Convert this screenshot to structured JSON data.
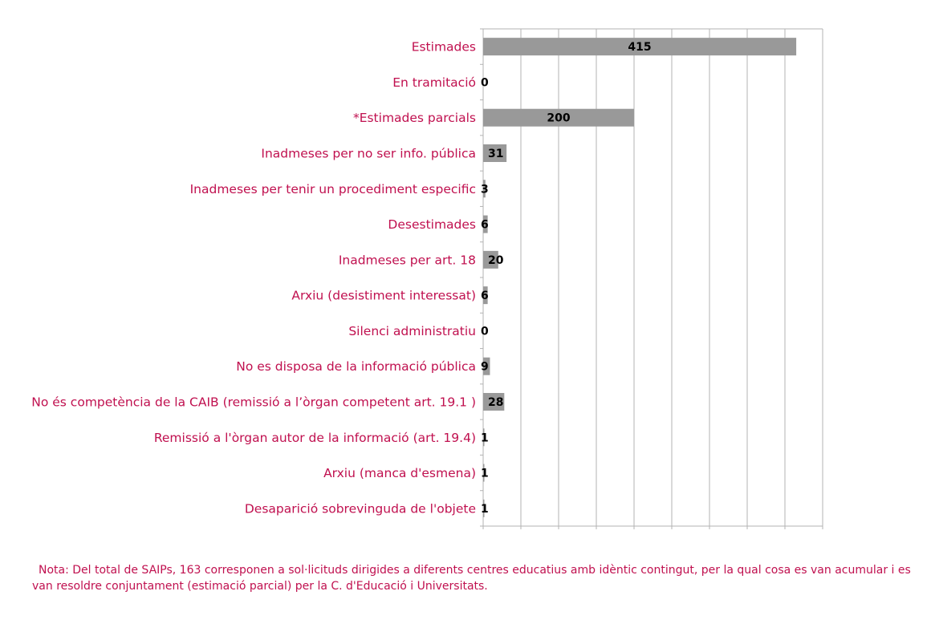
{
  "chart_data": {
    "type": "bar",
    "orientation": "horizontal",
    "categories": [
      "Estimades",
      "En tramitació",
      "*Estimades parcials",
      "Inadmeses per no ser info. pública",
      "Inadmeses per tenir un procediment especific",
      "Desestimades",
      "Inadmeses per art. 18",
      "Arxiu (desistiment interessat)",
      "Silenci administratiu",
      "No es disposa de la informació pública",
      "No és competència de la CAIB (remissió a l’òrgan competent art. 19.1 )",
      "Remissió a l'òrgan autor de la informació (art. 19.4)",
      "Arxiu (manca d'esmena)",
      "Desaparició sobrevinguda de l'objete"
    ],
    "values": [
      415,
      0,
      200,
      31,
      3,
      6,
      20,
      6,
      0,
      9,
      28,
      1,
      1,
      1
    ],
    "xlim": [
      0,
      450
    ],
    "grid": true,
    "legend": "none",
    "data_labels": true,
    "colors": {
      "bar": "#999999",
      "label": "#c0104f",
      "grid": "#b3b3b3",
      "value_text": "#000000"
    }
  },
  "note": "Nota: Del total de SAIPs, 163 corresponen a sol·licituds dirigides a diferents centres educatius amb idèntic contingut, per la qual cosa es van acumular i es van resoldre conjuntament (estimació parcial) per la C. d'Educació i Universitats."
}
